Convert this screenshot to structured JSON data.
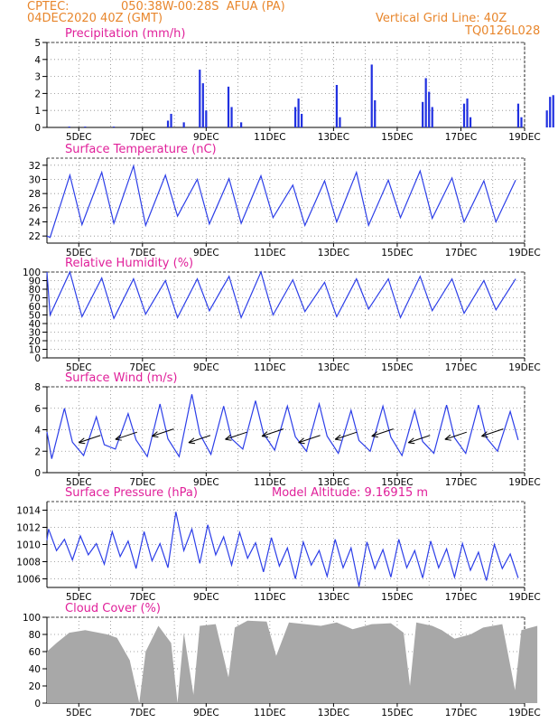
{
  "header": {
    "source": "CPTEC:",
    "location": "050:38W-00:28S  AFUA (PA)",
    "run": "04DEC2020 40Z (GMT)",
    "grid_note": "Vertical Grid Line: 40Z",
    "code": "TQ0126L028"
  },
  "colors": {
    "header": "#e8862c",
    "title": "#e0209a",
    "line": "#2c3ee8",
    "bar": "#2030e0",
    "cloud": "#a8a8a8"
  },
  "chart_data": [
    {
      "type": "bar",
      "title": "Precipitation (mm/h)",
      "x_ticks": [
        "5DEC",
        "7DEC",
        "9DEC",
        "11DEC",
        "13DEC",
        "15DEC",
        "17DEC",
        "19DEC"
      ],
      "x_unit": "day offset from 04DEC2020",
      "ylim": [
        0,
        5
      ],
      "y_ticks": [
        "0",
        "1",
        "2",
        "3",
        "4",
        "5"
      ],
      "grid": true,
      "values": [
        [
          0.7,
          0.05
        ],
        [
          1.2,
          0.05
        ],
        [
          2.1,
          0.05
        ],
        [
          3.8,
          0.4
        ],
        [
          3.9,
          0.8
        ],
        [
          4.3,
          0.3
        ],
        [
          4.8,
          3.4
        ],
        [
          4.9,
          2.6
        ],
        [
          5.0,
          1.0
        ],
        [
          5.7,
          2.4
        ],
        [
          5.8,
          1.2
        ],
        [
          6.1,
          0.3
        ],
        [
          7.8,
          1.2
        ],
        [
          7.9,
          1.7
        ],
        [
          8.0,
          0.8
        ],
        [
          9.1,
          2.5
        ],
        [
          9.2,
          0.6
        ],
        [
          10.2,
          3.7
        ],
        [
          10.3,
          1.6
        ],
        [
          11.8,
          1.5
        ],
        [
          11.9,
          2.9
        ],
        [
          12.0,
          2.1
        ],
        [
          12.1,
          1.2
        ],
        [
          13.1,
          1.4
        ],
        [
          13.2,
          1.7
        ],
        [
          13.3,
          0.6
        ],
        [
          14.8,
          1.4
        ],
        [
          14.9,
          0.6
        ],
        [
          15.7,
          1.0
        ],
        [
          15.8,
          1.8
        ],
        [
          15.9,
          1.9
        ]
      ]
    },
    {
      "type": "line",
      "title": "Surface Temperature (nC)",
      "x_ticks": [
        "5DEC",
        "7DEC",
        "9DEC",
        "11DEC",
        "13DEC",
        "15DEC",
        "17DEC",
        "19DEC"
      ],
      "ylim": [
        21,
        33
      ],
      "y_ticks": [
        "22",
        "24",
        "26",
        "28",
        "30",
        "32"
      ],
      "grid": true,
      "series": [
        {
          "min": [
            21.8,
            23.6,
            23.8,
            23.5,
            24.8,
            23.7,
            23.8,
            24.6,
            23.5,
            24.0,
            23.5,
            24.6,
            24.5,
            24.0,
            24.0,
            24.4
          ],
          "max": [
            30.6,
            31.0,
            31.9,
            30.6,
            30.0,
            30.1,
            30.5,
            29.2,
            29.8,
            31.0,
            29.9,
            31.2,
            30.2,
            29.8,
            29.9,
            29.9
          ]
        }
      ]
    },
    {
      "type": "line",
      "title": "Relative Humidity (%)",
      "x_ticks": [
        "5DEC",
        "7DEC",
        "9DEC",
        "11DEC",
        "13DEC",
        "15DEC",
        "17DEC",
        "19DEC"
      ],
      "ylim": [
        0,
        100
      ],
      "y_ticks": [
        "0",
        "10",
        "20",
        "30",
        "40",
        "50",
        "60",
        "70",
        "80",
        "90",
        "100"
      ],
      "grid": true,
      "series": [
        {
          "min": [
            50,
            48,
            46,
            51,
            47,
            55,
            47,
            50,
            54,
            48,
            57,
            47,
            55,
            52,
            56,
            58
          ],
          "max": [
            100,
            93,
            92,
            90,
            92,
            95,
            100,
            91,
            88,
            92,
            92,
            95,
            92,
            90,
            92,
            92
          ]
        }
      ]
    },
    {
      "type": "line",
      "title": "Surface Wind (m/s)",
      "x_ticks": [
        "5DEC",
        "7DEC",
        "9DEC",
        "11DEC",
        "13DEC",
        "15DEC",
        "17DEC",
        "19DEC"
      ],
      "ylim": [
        0,
        8
      ],
      "y_ticks": [
        "0",
        "2",
        "4",
        "6",
        "8"
      ],
      "grid": true,
      "series": [
        {
          "max": [
            6.0,
            5.2,
            5.5,
            6.4,
            7.3,
            6.2,
            6.7,
            6.2,
            6.4,
            5.8,
            6.2,
            5.8,
            6.3,
            6.3,
            5.7,
            5.5
          ],
          "min": [
            1.3,
            1.6,
            2.2,
            1.5,
            1.5,
            1.7,
            2.2,
            2.1,
            2.0,
            1.8,
            2.0,
            1.6,
            1.8,
            1.8,
            2.0,
            1.8
          ]
        }
      ],
      "wind_vectors": 12
    },
    {
      "type": "line",
      "title": "Surface Pressure (hPa)",
      "annotation": "Model Altitude: 9.16915 m",
      "x_ticks": [
        "5DEC",
        "7DEC",
        "9DEC",
        "11DEC",
        "13DEC",
        "15DEC",
        "17DEC",
        "19DEC"
      ],
      "ylim": [
        1005,
        1015
      ],
      "y_ticks": [
        "1006",
        "1008",
        "1010",
        "1012",
        "1014"
      ],
      "grid": true,
      "series": [
        {
          "hi1": [
            1011.8,
            1011.0,
            1011.5,
            1011.5,
            1013.8,
            1012.3,
            1011.4,
            1010.8,
            1010.3,
            1010.6,
            1010.3,
            1010.6,
            1010.4,
            1010.1,
            1010.0,
            1010.0
          ],
          "lo1": [
            1009.3,
            1008.8,
            1008.6,
            1008.1,
            1009.3,
            1008.8,
            1008.4,
            1007.5,
            1007.6,
            1007.3,
            1007.2,
            1007.3,
            1007.3,
            1007.0,
            1007.2,
            1007.3
          ],
          "hi2": [
            1010.6,
            1010.1,
            1010.4,
            1010.1,
            1011.8,
            1010.9,
            1010.2,
            1009.6,
            1009.3,
            1009.6,
            1009.4,
            1009.3,
            1009.5,
            1009.1,
            1008.9,
            1009.0
          ],
          "lo2": [
            1008.2,
            1007.7,
            1007.2,
            1007.3,
            1007.8,
            1007.6,
            1006.8,
            1006.0,
            1006.3,
            1005.1,
            1006.2,
            1006.1,
            1006.2,
            1005.8,
            1006.1,
            1006.2
          ]
        }
      ]
    },
    {
      "type": "area",
      "title": "Cloud Cover (%)",
      "x_ticks": [
        "5DEC",
        "7DEC",
        "9DEC",
        "11DEC",
        "13DEC",
        "15DEC",
        "17DEC",
        "19DEC"
      ],
      "ylim": [
        0,
        100
      ],
      "y_ticks": [
        "0",
        "20",
        "40",
        "60",
        "80",
        "100"
      ],
      "grid": true,
      "values": [
        [
          0.0,
          60
        ],
        [
          0.3,
          70
        ],
        [
          0.7,
          82
        ],
        [
          1.2,
          85
        ],
        [
          1.9,
          80
        ],
        [
          2.2,
          76
        ],
        [
          2.6,
          50
        ],
        [
          2.9,
          0
        ],
        [
          3.1,
          60
        ],
        [
          3.5,
          90
        ],
        [
          3.9,
          70
        ],
        [
          4.1,
          0
        ],
        [
          4.3,
          82
        ],
        [
          4.6,
          10
        ],
        [
          4.8,
          90
        ],
        [
          5.3,
          92
        ],
        [
          5.7,
          30
        ],
        [
          5.9,
          88
        ],
        [
          6.3,
          96
        ],
        [
          6.9,
          95
        ],
        [
          7.2,
          55
        ],
        [
          7.6,
          94
        ],
        [
          8.1,
          92
        ],
        [
          8.6,
          90
        ],
        [
          9.1,
          94
        ],
        [
          9.6,
          86
        ],
        [
          10.2,
          92
        ],
        [
          10.8,
          93
        ],
        [
          11.2,
          82
        ],
        [
          11.4,
          20
        ],
        [
          11.6,
          94
        ],
        [
          12.1,
          90
        ],
        [
          12.4,
          85
        ],
        [
          12.8,
          75
        ],
        [
          13.3,
          80
        ],
        [
          13.7,
          88
        ],
        [
          14.3,
          92
        ],
        [
          14.7,
          15
        ],
        [
          14.9,
          85
        ],
        [
          15.2,
          88
        ],
        [
          15.4,
          90
        ]
      ]
    }
  ]
}
